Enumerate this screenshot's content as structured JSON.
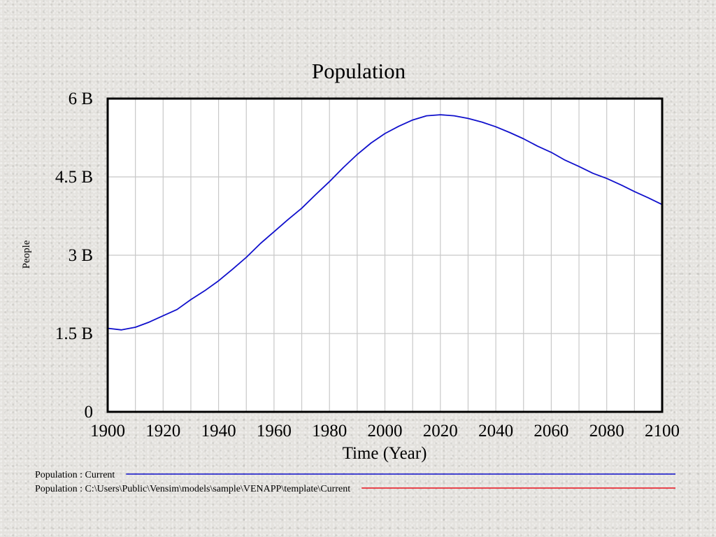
{
  "chart_data": {
    "type": "line",
    "title": "Population",
    "xlabel": "Time (Year)",
    "ylabel": "People",
    "xlim": [
      1900,
      2100
    ],
    "ylim": [
      0,
      6000000000
    ],
    "x_ticks": [
      1900,
      1920,
      1940,
      1960,
      1980,
      2000,
      2020,
      2040,
      2060,
      2080,
      2100
    ],
    "x_tick_labels": [
      "1900",
      "1920",
      "1940",
      "1960",
      "1980",
      "2000",
      "2020",
      "2040",
      "2060",
      "2080",
      "2100"
    ],
    "y_ticks": [
      0,
      1500000000,
      3000000000,
      4500000000,
      6000000000
    ],
    "y_tick_labels": [
      "0",
      "1.5 B",
      "3 B",
      "4.5 B",
      "6 B"
    ],
    "grid": true,
    "legend_position": "bottom",
    "series": [
      {
        "name": "Population : Current",
        "color": "#1010cc",
        "x": [
          1900,
          1905,
          1910,
          1915,
          1920,
          1925,
          1930,
          1935,
          1940,
          1945,
          1950,
          1955,
          1960,
          1965,
          1970,
          1975,
          1980,
          1985,
          1990,
          1995,
          2000,
          2005,
          2010,
          2015,
          2020,
          2025,
          2030,
          2035,
          2040,
          2045,
          2050,
          2055,
          2060,
          2065,
          2070,
          2075,
          2080,
          2085,
          2090,
          2095,
          2100
        ],
        "y": [
          1600000000,
          1570000000,
          1620000000,
          1720000000,
          1840000000,
          1960000000,
          2150000000,
          2320000000,
          2510000000,
          2730000000,
          2960000000,
          3220000000,
          3450000000,
          3680000000,
          3900000000,
          4160000000,
          4410000000,
          4680000000,
          4930000000,
          5150000000,
          5330000000,
          5470000000,
          5590000000,
          5670000000,
          5690000000,
          5670000000,
          5620000000,
          5550000000,
          5460000000,
          5350000000,
          5230000000,
          5090000000,
          4970000000,
          4820000000,
          4700000000,
          4570000000,
          4470000000,
          4350000000,
          4220000000,
          4100000000,
          3970000000
        ]
      },
      {
        "name": "Population : C:\\Users\\Public\\Vensim\\models\\sample\\VENAPP\\template\\Current",
        "color": "#e8101c",
        "x": [],
        "y": []
      }
    ]
  }
}
